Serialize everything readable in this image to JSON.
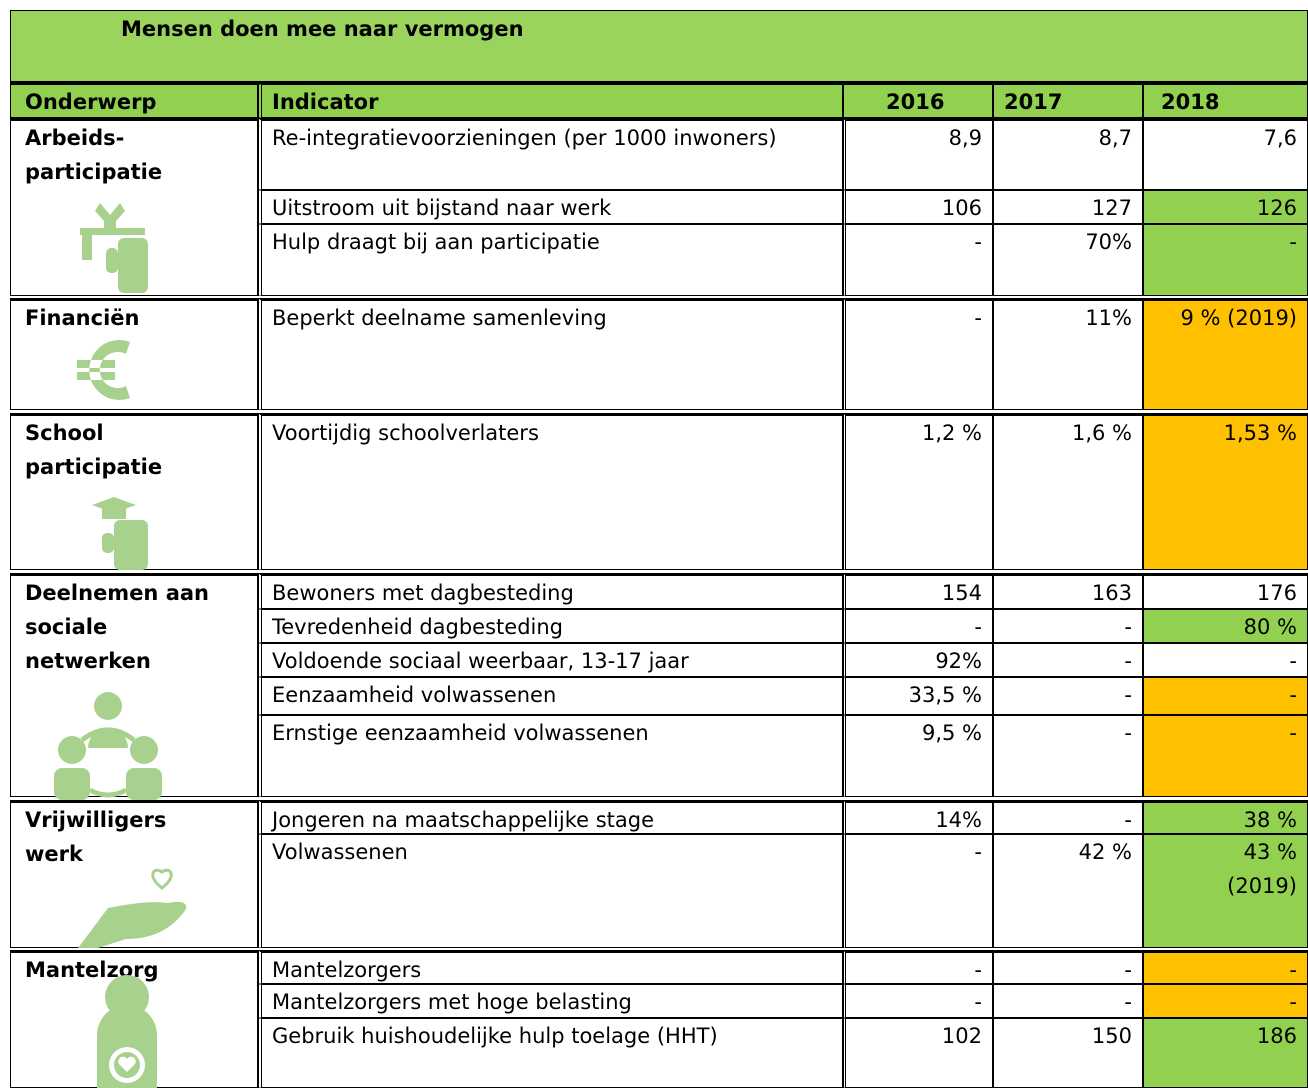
{
  "title": "Mensen doen mee naar vermogen",
  "header": [
    "Onderwerp",
    "Indicator",
    "2016",
    "2017",
    "2018"
  ],
  "groups": [
    {
      "name": [
        "Arbeids-",
        "participatie"
      ],
      "rows": [
        {
          "indicator": "Re-integratievoorzieningen (per 1000 inwoners)",
          "values": [
            "8,9",
            "8,7",
            "7,6"
          ]
        },
        {
          "indicator": "Uitstroom uit bijstand naar werk",
          "values": [
            "106",
            "127",
            "126"
          ],
          "color_2018": "#92d050"
        },
        {
          "indicator": "Hulp draagt bij aan participatie",
          "values": [
            "-",
            "70%",
            "-"
          ],
          "color_2018": "#92d050"
        }
      ]
    },
    {
      "name": [
        "Financiën"
      ],
      "rows": [
        {
          "indicator": "Beperkt deelname samenleving",
          "values": [
            "-",
            "11%",
            "9 % (2019)"
          ],
          "color_2018": "#ffc000"
        }
      ]
    },
    {
      "name": [
        "School",
        "participatie"
      ],
      "rows": [
        {
          "indicator": "Voortijdig schoolverlaters",
          "values": [
            "1,2 %",
            "1,6 %",
            "1,53 %"
          ],
          "color_2018": "#ffc000"
        }
      ]
    },
    {
      "name": [
        "Deelnemen aan",
        "sociale",
        "netwerken"
      ],
      "rows": [
        {
          "indicator": "Bewoners met dagbesteding",
          "values": [
            "154",
            "163",
            "176"
          ]
        },
        {
          "indicator": "Tevredenheid dagbesteding",
          "values": [
            "-",
            "-",
            "80 %"
          ],
          "color_2018": "#92d050"
        },
        {
          "indicator": "Voldoende sociaal weerbaar, 13-17 jaar",
          "values": [
            "92%",
            "-",
            "-"
          ]
        },
        {
          "indicator": "Eenzaamheid volwassenen",
          "values": [
            "33,5 %",
            "-",
            "-"
          ],
          "color_2018": "#ffc000"
        },
        {
          "indicator": "Ernstige eenzaamheid volwassenen",
          "values": [
            "9,5 %",
            "-",
            "-"
          ],
          "color_2018": "#ffc000"
        }
      ]
    },
    {
      "name": [
        "Vrijwilligers",
        "werk"
      ],
      "rows": [
        {
          "indicator": "Jongeren na maatschappelijke stage",
          "values": [
            "14%",
            "-",
            "38 %"
          ],
          "color_2018": "#92d050"
        },
        {
          "indicator": "Volwassenen",
          "values": [
            "-",
            "42 %",
            [
              "43 %",
              "(2019)"
            ]
          ],
          "color_2018": "#92d050"
        }
      ]
    },
    {
      "name": [
        "Mantelzorg"
      ],
      "rows": [
        {
          "indicator": "Mantelzorgers",
          "values": [
            "-",
            "-",
            "-"
          ],
          "color_2018": "#ffc000"
        },
        {
          "indicator": "Mantelzorgers met hoge belasting",
          "values": [
            "-",
            "-",
            "-"
          ],
          "color_2018": "#ffc000"
        },
        {
          "indicator": "Gebruik huishoudelijke hulp toelage (HHT)",
          "values": [
            "102",
            "150",
            "186"
          ],
          "color_2018": "#92d050"
        }
      ]
    }
  ]
}
